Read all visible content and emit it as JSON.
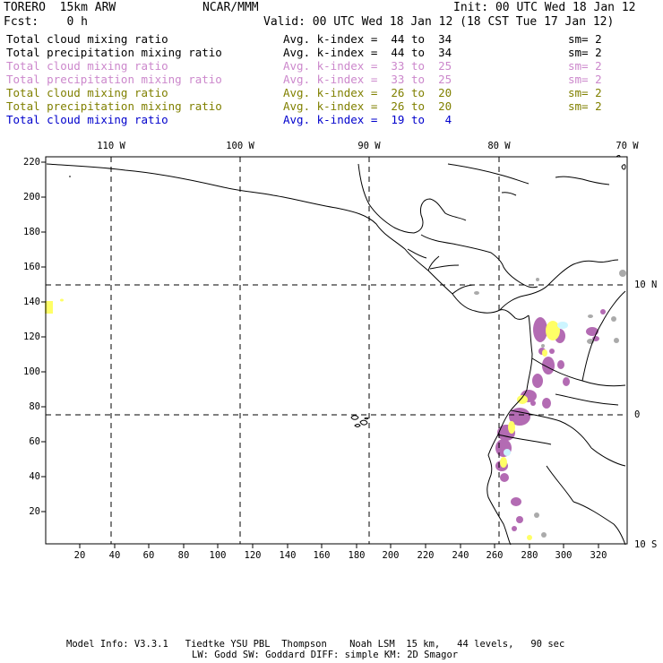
{
  "header": {
    "model": "TORERO  15km ARW",
    "org": "NCAR/MMM",
    "init": "Init: 00 UTC Wed 18 Jan 12",
    "fcst": "Fcst:    0 h",
    "valid": "Valid: 00 UTC Wed 18 Jan 12 (18 CST Tue 17 Jan 12)"
  },
  "legend": [
    {
      "field": "Total cloud mixing ratio",
      "index": "Avg. k-index =  44 to  34",
      "sm": "sm= 2",
      "color": "#000000"
    },
    {
      "field": "Total precipitation mixing ratio",
      "index": "Avg. k-index =  44 to  34",
      "sm": "sm= 2",
      "color": "#000000"
    },
    {
      "field": "Total cloud mixing ratio",
      "index": "Avg. k-index =  33 to  25",
      "sm": "sm= 2",
      "color": "#cc88cc"
    },
    {
      "field": "Total precipitation mixing ratio",
      "index": "Avg. k-index =  33 to  25",
      "sm": "sm= 2",
      "color": "#cc88cc"
    },
    {
      "field": "Total cloud mixing ratio",
      "index": "Avg. k-index =  26 to  20",
      "sm": "sm= 2",
      "color": "#808000"
    },
    {
      "field": "Total precipitation mixing ratio",
      "index": "Avg. k-index =  26 to  20",
      "sm": "sm= 2",
      "color": "#808000"
    },
    {
      "field": "Total cloud mixing ratio",
      "index": "Avg. k-index =  19 to   4",
      "sm": "",
      "color": "#0000cc"
    }
  ],
  "axes": {
    "left_ticks": [
      "220",
      "200",
      "180",
      "160",
      "140",
      "120",
      "100",
      "80",
      "60",
      "40",
      "20"
    ],
    "bottom_ticks": [
      "20",
      "40",
      "60",
      "80",
      "100",
      "120",
      "140",
      "160",
      "180",
      "200",
      "220",
      "240",
      "260",
      "280",
      "300",
      "320"
    ],
    "top_lon_labels": [
      "110 W",
      "100 W",
      "90 W",
      "80 W",
      "70 W"
    ],
    "right_lat_labels": [
      "10 N",
      "0",
      "10 S"
    ]
  },
  "footer": {
    "line1": "Model Info: V3.3.1   Tiedtke YSU PBL  Thompson    Noah LSM  15 km,   44 levels,   90 sec",
    "line2": "LW: Godd SW: Goddard DIFF: simple KM: 2D Smagor"
  },
  "colors": {
    "precip_purple": "#b36bb3",
    "cloud_yellow": "#ffff66",
    "cloud_gray": "#aaaaaa",
    "cloud_cyan": "#ccf5ff"
  }
}
